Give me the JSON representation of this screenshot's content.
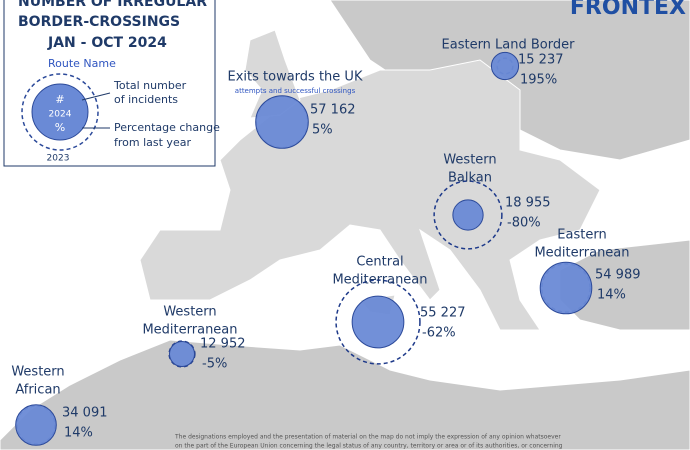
{
  "header": {
    "title_lines": [
      "NUMBER OF IRREGULAR",
      "BORDER-CROSSINGS",
      "JAN - OCT 2024"
    ],
    "logo": "FRONTEX"
  },
  "legend": {
    "route_name": "Route Name",
    "count_symbol": "#",
    "year_current": "2024",
    "percent_symbol": "%",
    "year_previous": "2023",
    "count_desc_lines": [
      "Total number",
      "of incidents"
    ],
    "change_desc_lines": [
      "Percentage change",
      "from last year"
    ]
  },
  "routes": [
    {
      "name_lines": [
        "Eastern Land Border"
      ],
      "incidents": 15237,
      "incidents_label": "15 237",
      "change": 195,
      "change_label": "195%"
    },
    {
      "name_lines": [
        "Exits towards the UK"
      ],
      "subtitle": "attempts and successful crossings",
      "incidents": 57162,
      "incidents_label": "57 162",
      "change": 5,
      "change_label": "5%"
    },
    {
      "name_lines": [
        "Western",
        "Balkan"
      ],
      "incidents": 18955,
      "incidents_label": "18 955",
      "change": -80,
      "change_label": "-80%"
    },
    {
      "name_lines": [
        "Eastern",
        "Mediterranean"
      ],
      "incidents": 54989,
      "incidents_label": "54 989",
      "change": 14,
      "change_label": "14%"
    },
    {
      "name_lines": [
        "Central",
        "Mediterranean"
      ],
      "incidents": 55227,
      "incidents_label": "55 227",
      "change": -62,
      "change_label": "-62%"
    },
    {
      "name_lines": [
        "Western",
        "Mediterranean"
      ],
      "incidents": 12952,
      "incidents_label": "12 952",
      "change": -5,
      "change_label": "-5%"
    },
    {
      "name_lines": [
        "Western",
        "African"
      ],
      "incidents": 34091,
      "incidents_label": "34 091",
      "change": 14,
      "change_label": "14%"
    }
  ],
  "footer": {
    "disclaimer_lines": [
      "The designations employed and the presentation of material on the map do not imply the expression of any opinion whatsoever",
      "on the part of the European Union concerning the legal status of any country, territory or area or of its authorities, or concerning"
    ]
  }
}
